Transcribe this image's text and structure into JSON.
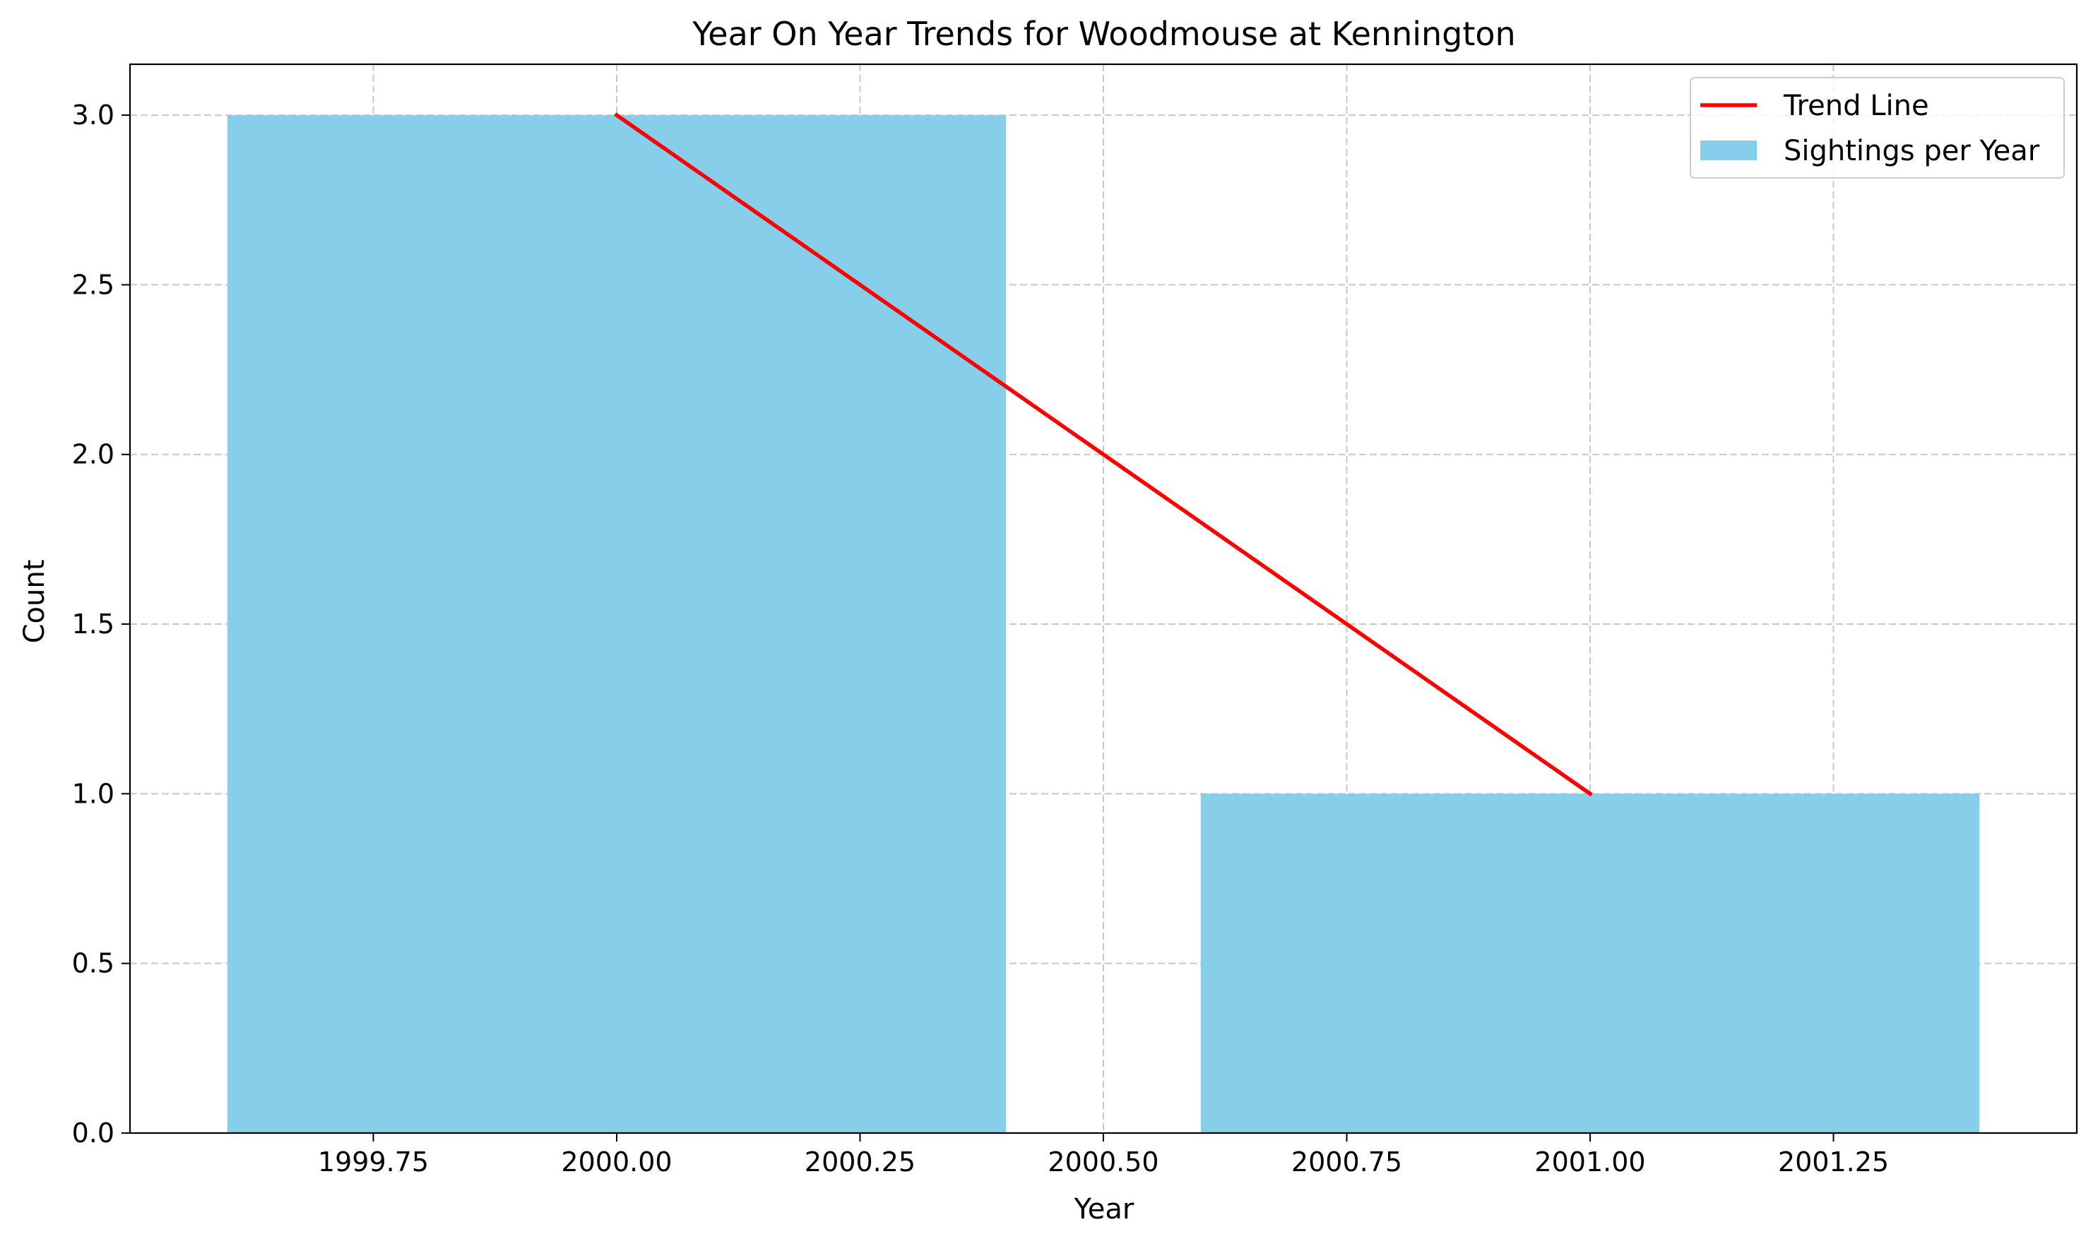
{
  "chart_data": {
    "type": "bar",
    "title": "Year On Year Trends for Woodmouse at Kennington",
    "xlabel": "Year",
    "ylabel": "Count",
    "xlim": [
      1999.5,
      2001.5
    ],
    "ylim": [
      0,
      3.15
    ],
    "xticks": [
      1999.75,
      2000.0,
      2000.25,
      2000.5,
      2000.75,
      2001.0,
      2001.25
    ],
    "xtick_labels": [
      "1999.75",
      "2000.00",
      "2000.25",
      "2000.50",
      "2000.75",
      "2001.00",
      "2001.25"
    ],
    "yticks": [
      0.0,
      0.5,
      1.0,
      1.5,
      2.0,
      2.5,
      3.0
    ],
    "ytick_labels": [
      "0.0",
      "0.5",
      "1.0",
      "1.5",
      "2.0",
      "2.5",
      "3.0"
    ],
    "grid": true,
    "legend_position": "top-right",
    "bar_width": 0.8,
    "series": [
      {
        "name": "Sightings per Year",
        "kind": "bar",
        "color": "#87CEEB",
        "x": [
          2000,
          2001
        ],
        "values": [
          3,
          1
        ]
      },
      {
        "name": "Trend Line",
        "kind": "line",
        "color": "#FF0000",
        "x": [
          2000,
          2001
        ],
        "values": [
          3,
          1
        ]
      }
    ]
  }
}
